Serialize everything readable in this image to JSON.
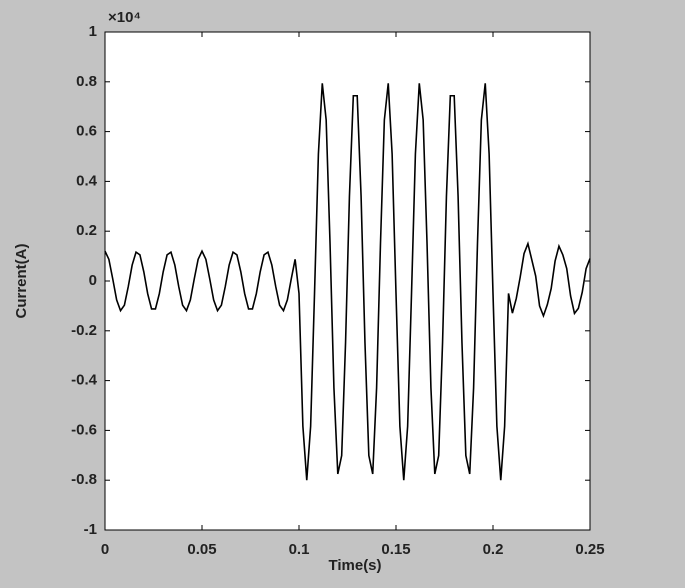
{
  "chart_data": {
    "type": "line",
    "x_label": "Time(s)",
    "y_label": "Current(A)",
    "y_multiplier": "×10⁴",
    "color": "#000000",
    "x": [
      0,
      0.002,
      0.004,
      0.006,
      0.008,
      0.01,
      0.012,
      0.014,
      0.016,
      0.018,
      0.02,
      0.022,
      0.024,
      0.026,
      0.028,
      0.03,
      0.032,
      0.034,
      0.036,
      0.038,
      0.04,
      0.042,
      0.044,
      0.046,
      0.048,
      0.05,
      0.052,
      0.054,
      0.056,
      0.058,
      0.06,
      0.062,
      0.064,
      0.066,
      0.068,
      0.07,
      0.072,
      0.074,
      0.076,
      0.078,
      0.08,
      0.082,
      0.084,
      0.086,
      0.088,
      0.09,
      0.092,
      0.094,
      0.096,
      0.098,
      0.1,
      0.102,
      0.104,
      0.106,
      0.108,
      0.11,
      0.112,
      0.114,
      0.116,
      0.118,
      0.12,
      0.122,
      0.124,
      0.126,
      0.128,
      0.13,
      0.132,
      0.134,
      0.136,
      0.138,
      0.14,
      0.142,
      0.144,
      0.146,
      0.148,
      0.15,
      0.152,
      0.154,
      0.156,
      0.158,
      0.16,
      0.162,
      0.164,
      0.166,
      0.168,
      0.17,
      0.172,
      0.174,
      0.176,
      0.178,
      0.18,
      0.182,
      0.184,
      0.186,
      0.188,
      0.19,
      0.192,
      0.194,
      0.196,
      0.198,
      0.2,
      0.202,
      0.204,
      0.206,
      0.208,
      0.21,
      0.212,
      0.214,
      0.216,
      0.218,
      0.22,
      0.222,
      0.224,
      0.226,
      0.228,
      0.23,
      0.232,
      0.234,
      0.236,
      0.238,
      0.24,
      0.242,
      0.244,
      0.246,
      0.248,
      0.25
    ],
    "values": [
      0.12,
      0.087,
      0.008,
      -0.076,
      -0.119,
      -0.097,
      -0.022,
      0.064,
      0.116,
      0.105,
      0.037,
      -0.051,
      -0.112,
      -0.112,
      -0.051,
      0.037,
      0.105,
      0.116,
      0.064,
      -0.022,
      -0.097,
      -0.119,
      -0.076,
      0.008,
      0.087,
      0.12,
      0.087,
      0.008,
      -0.076,
      -0.119,
      -0.097,
      -0.022,
      0.064,
      0.116,
      0.105,
      0.037,
      -0.051,
      -0.112,
      -0.112,
      -0.051,
      0.037,
      0.105,
      0.116,
      0.064,
      -0.022,
      -0.097,
      -0.119,
      -0.076,
      0.008,
      0.087,
      -0.05,
      -0.583,
      -0.8,
      -0.583,
      -0.05,
      0.51,
      0.794,
      0.647,
      0.15,
      -0.429,
      -0.775,
      -0.701,
      -0.247,
      0.341,
      0.744,
      0.744,
      0.341,
      -0.247,
      -0.701,
      -0.775,
      -0.429,
      0.15,
      0.647,
      0.794,
      0.51,
      -0.05,
      -0.583,
      -0.8,
      -0.583,
      -0.05,
      0.51,
      0.794,
      0.647,
      0.15,
      -0.429,
      -0.775,
      -0.701,
      -0.247,
      0.341,
      0.744,
      0.744,
      0.341,
      -0.247,
      -0.701,
      -0.775,
      -0.429,
      0.15,
      0.647,
      0.794,
      0.51,
      -0.05,
      -0.583,
      -0.8,
      -0.583,
      -0.05,
      -0.129,
      -0.07,
      0.015,
      0.11,
      0.15,
      0.085,
      0.02,
      -0.1,
      -0.14,
      -0.095,
      -0.03,
      0.08,
      0.14,
      0.105,
      0.05,
      -0.06,
      -0.13,
      -0.11,
      -0.045,
      0.05,
      0.09
    ],
    "xlim": [
      0,
      0.25
    ],
    "ylim": [
      -1,
      1
    ],
    "xticks": [
      0,
      0.05,
      0.1,
      0.15,
      0.2,
      0.25
    ],
    "yticks": [
      -1,
      -0.8,
      -0.6,
      -0.4,
      -0.2,
      0,
      0.2,
      0.4,
      0.6,
      0.8,
      1
    ]
  }
}
